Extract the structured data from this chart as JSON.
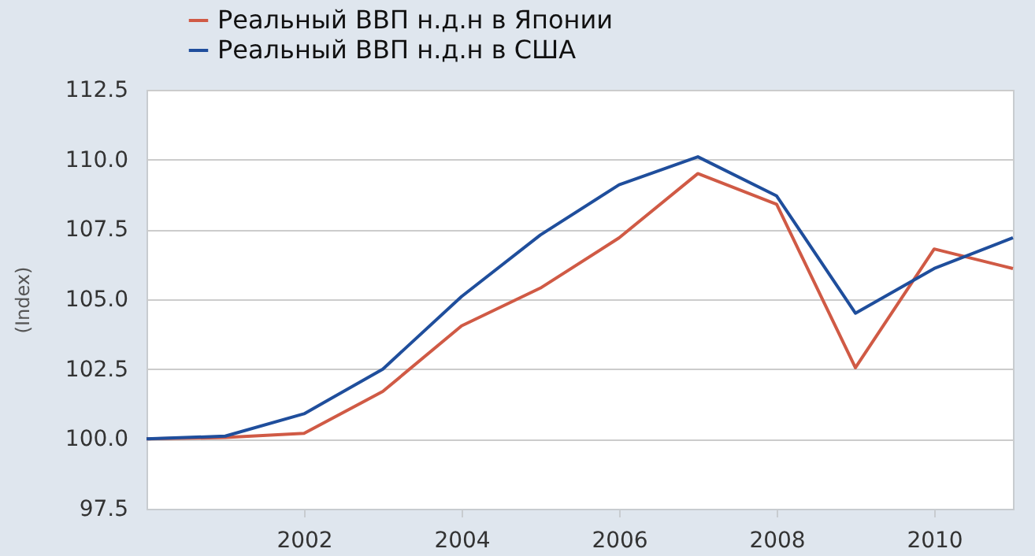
{
  "chart_data": {
    "type": "line",
    "ylabel": "(Index)",
    "x": [
      2000,
      2001,
      2002,
      2003,
      2004,
      2005,
      2006,
      2007,
      2008,
      2009,
      2010,
      2011
    ],
    "series": [
      {
        "name": "Реальный ВВП н.д.н в Японии",
        "color": "#d05a45",
        "values": [
          100.0,
          100.05,
          100.2,
          101.7,
          104.05,
          105.4,
          107.2,
          109.5,
          108.4,
          102.55,
          106.8,
          106.1
        ]
      },
      {
        "name": "Реальный ВВП н.д.н в США",
        "color": "#1f4e9c",
        "values": [
          100.0,
          100.1,
          100.9,
          102.5,
          105.1,
          107.3,
          109.1,
          110.1,
          108.7,
          104.5,
          106.1,
          107.2
        ]
      }
    ],
    "xlim": [
      2000,
      2011
    ],
    "xticks": [
      2002,
      2004,
      2006,
      2008,
      2010
    ],
    "ylim": [
      97.5,
      112.5
    ],
    "yticks": [
      97.5,
      {
        "value": 100,
        "label": "100.0"
      },
      102.5,
      {
        "value": 105,
        "label": "105.0"
      },
      107.5,
      {
        "value": 110,
        "label": "110.0"
      },
      112.5
    ],
    "grid": "y",
    "legend": "top left",
    "marker": "none",
    "line_style": "solid"
  }
}
